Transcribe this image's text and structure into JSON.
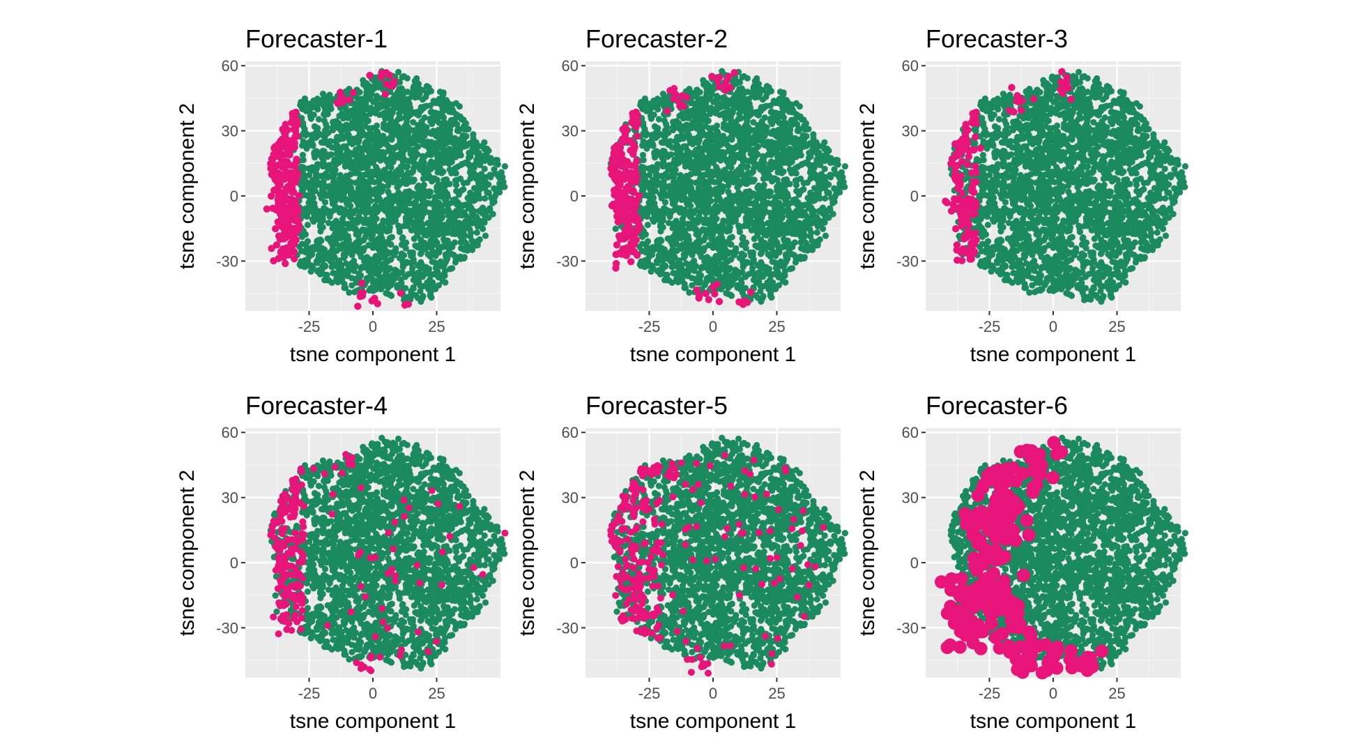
{
  "colors": {
    "background": "#ebebeb",
    "grid_major": "#ffffff",
    "grid_minor": "#f5f5f5",
    "cluster_main": "#1b8a5e",
    "cluster_highlight": "#e7157a",
    "tick_text": "#4d4d4d"
  },
  "chart_data": [
    {
      "type": "scatter",
      "title": "Forecaster-1",
      "xlabel": "tsne component 1",
      "ylabel": "tsne component 2",
      "xlim": [
        -50,
        50
      ],
      "ylim": [
        -53,
        62
      ],
      "xticks": [
        -25,
        0,
        25
      ],
      "yticks": [
        -30,
        0,
        30,
        60
      ],
      "grid": true,
      "series": [
        {
          "color": "#1b8a5e",
          "shape": "disc",
          "center": [
            4,
            4
          ],
          "radius": [
            46,
            52
          ]
        },
        {
          "color": "#e7157a",
          "pattern": "left-edge-dense",
          "clusters": [
            [
              -37,
              -5
            ],
            [
              -35,
              22
            ],
            [
              -35,
              -28
            ],
            [
              -13,
              45
            ],
            [
              5,
              53
            ],
            [
              -2,
              -46
            ],
            [
              13,
              -51
            ]
          ]
        }
      ]
    },
    {
      "type": "scatter",
      "title": "Forecaster-2",
      "xlabel": "tsne component 1",
      "ylabel": "tsne component 2",
      "xlim": [
        -50,
        50
      ],
      "ylim": [
        -53,
        62
      ],
      "xticks": [
        -25,
        0,
        25
      ],
      "yticks": [
        -30,
        0,
        30,
        60
      ],
      "grid": true,
      "series": [
        {
          "color": "#1b8a5e",
          "shape": "disc",
          "center": [
            4,
            4
          ],
          "radius": [
            46,
            52
          ]
        },
        {
          "color": "#e7157a",
          "pattern": "left-edge-medium",
          "clusters": [
            [
              -37,
              -5
            ],
            [
              -36,
              20
            ],
            [
              -35,
              -28
            ],
            [
              -14,
              44
            ],
            [
              5,
              52
            ],
            [
              -2,
              -46
            ],
            [
              13,
              -51
            ]
          ]
        }
      ]
    },
    {
      "type": "scatter",
      "title": "Forecaster-3",
      "xlabel": "tsne component 1",
      "ylabel": "tsne component 2",
      "xlim": [
        -50,
        50
      ],
      "ylim": [
        -53,
        62
      ],
      "xticks": [
        -25,
        0,
        25
      ],
      "yticks": [
        -30,
        0,
        30,
        60
      ],
      "grid": true,
      "series": [
        {
          "color": "#1b8a5e",
          "shape": "disc",
          "center": [
            4,
            4
          ],
          "radius": [
            46,
            52
          ]
        },
        {
          "color": "#e7157a",
          "pattern": "left-edge-sparse",
          "clusters": [
            [
              -38,
              -2
            ],
            [
              -36,
              22
            ],
            [
              -34,
              -28
            ],
            [
              -14,
              44
            ],
            [
              5,
              52
            ]
          ]
        }
      ]
    },
    {
      "type": "scatter",
      "title": "Forecaster-4",
      "xlabel": "tsne component 1",
      "ylabel": "tsne component 2",
      "xlim": [
        -50,
        50
      ],
      "ylim": [
        -53,
        62
      ],
      "xticks": [
        -25,
        0,
        25
      ],
      "yticks": [
        -30,
        0,
        30,
        60
      ],
      "grid": true,
      "series": [
        {
          "color": "#1b8a5e",
          "shape": "disc",
          "center": [
            4,
            4
          ],
          "radius": [
            46,
            52
          ]
        },
        {
          "color": "#e7157a",
          "pattern": "left-edge-scattered",
          "clusters": [
            [
              -36,
              0
            ],
            [
              -34,
              25
            ],
            [
              -34,
              -28
            ],
            [
              -10,
              46
            ],
            [
              -2,
              -46
            ]
          ]
        }
      ]
    },
    {
      "type": "scatter",
      "title": "Forecaster-5",
      "xlabel": "tsne component 1",
      "ylabel": "tsne component 2",
      "xlim": [
        -50,
        50
      ],
      "ylim": [
        -53,
        62
      ],
      "xticks": [
        -25,
        0,
        25
      ],
      "yticks": [
        -30,
        0,
        30,
        60
      ],
      "grid": true,
      "series": [
        {
          "color": "#1b8a5e",
          "shape": "disc",
          "center": [
            4,
            4
          ],
          "radius": [
            46,
            52
          ]
        },
        {
          "color": "#e7157a",
          "pattern": "left-region-scattered",
          "clusters": [
            [
              -32,
              -10
            ],
            [
              -30,
              25
            ],
            [
              -28,
              -25
            ],
            [
              -15,
              42
            ],
            [
              -5,
              -46
            ]
          ]
        }
      ]
    },
    {
      "type": "scatter",
      "title": "Forecaster-6",
      "xlabel": "tsne component 1",
      "ylabel": "tsne component 2",
      "xlim": [
        -50,
        50
      ],
      "ylim": [
        -53,
        62
      ],
      "xticks": [
        -25,
        0,
        25
      ],
      "yticks": [
        -30,
        0,
        30,
        60
      ],
      "grid": true,
      "series": [
        {
          "color": "#1b8a5e",
          "shape": "disc",
          "center": [
            4,
            4
          ],
          "radius": [
            46,
            52
          ]
        },
        {
          "color": "#e7157a",
          "pattern": "large-points-left-half",
          "clusters": [
            [
              -25,
              20
            ],
            [
              -22,
              -10
            ],
            [
              -18,
              -25
            ],
            [
              -8,
              45
            ],
            [
              -10,
              -38
            ],
            [
              13,
              -49
            ],
            [
              -3,
              -50
            ]
          ]
        }
      ]
    }
  ]
}
